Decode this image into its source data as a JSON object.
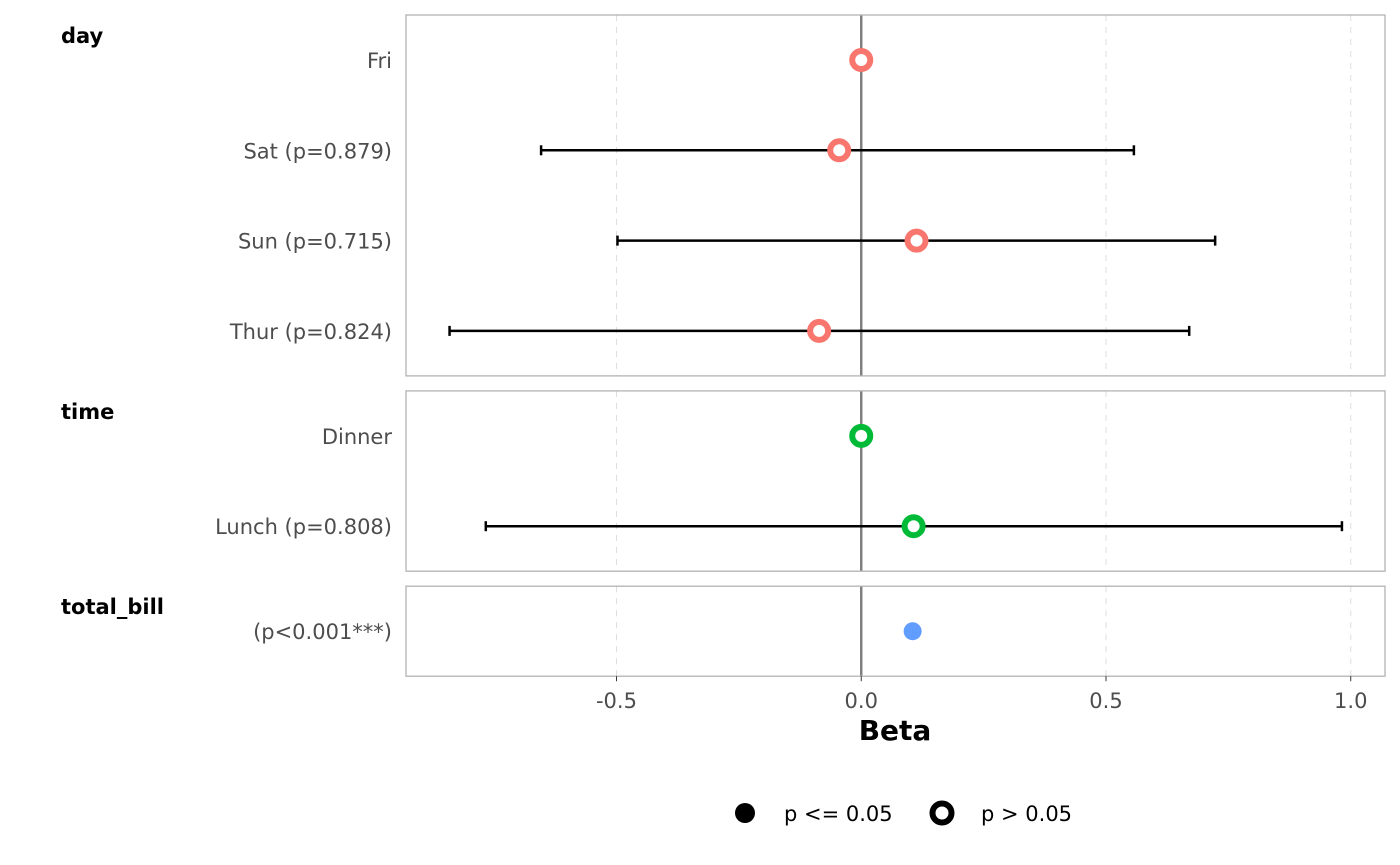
{
  "chart_data": {
    "type": "forest",
    "xlabel": "Beta",
    "xlim": [
      -0.93,
      1.07
    ],
    "xticks": [
      -0.5,
      0.0,
      0.5,
      1.0
    ],
    "xtick_labels": [
      "-0.5",
      "0.0",
      "0.5",
      "1.0"
    ],
    "grid": "vertical dashed",
    "legend_position": "bottom",
    "groups": [
      {
        "name": "day",
        "color": "#F8766D",
        "rows": [
          {
            "label": "Fri",
            "estimate": 0.0,
            "ci": null,
            "significant": false
          },
          {
            "label": "Sat (p=0.879)",
            "estimate": -0.045,
            "ci": [
              -0.654,
              0.557
            ],
            "significant": false
          },
          {
            "label": "Sun (p=0.715)",
            "estimate": 0.113,
            "ci": [
              -0.498,
              0.723
            ],
            "significant": false
          },
          {
            "label": "Thur (p=0.824)",
            "estimate": -0.086,
            "ci": [
              -0.841,
              0.67
            ],
            "significant": false
          }
        ]
      },
      {
        "name": "time",
        "color": "#00BA38",
        "rows": [
          {
            "label": "Dinner",
            "estimate": 0.0,
            "ci": null,
            "significant": false
          },
          {
            "label": "Lunch (p=0.808)",
            "estimate": 0.107,
            "ci": [
              -0.767,
              0.982
            ],
            "significant": false
          }
        ]
      },
      {
        "name": "total_bill",
        "color": "#619CFF",
        "rows": [
          {
            "label": "(p<0.001***)",
            "estimate": 0.105,
            "ci": [
              0.096,
              0.114
            ],
            "significant": true
          }
        ]
      }
    ],
    "legend": [
      {
        "label": "p <= 0.05",
        "style": "filled"
      },
      {
        "label": "p > 0.05",
        "style": "hollow"
      }
    ]
  }
}
